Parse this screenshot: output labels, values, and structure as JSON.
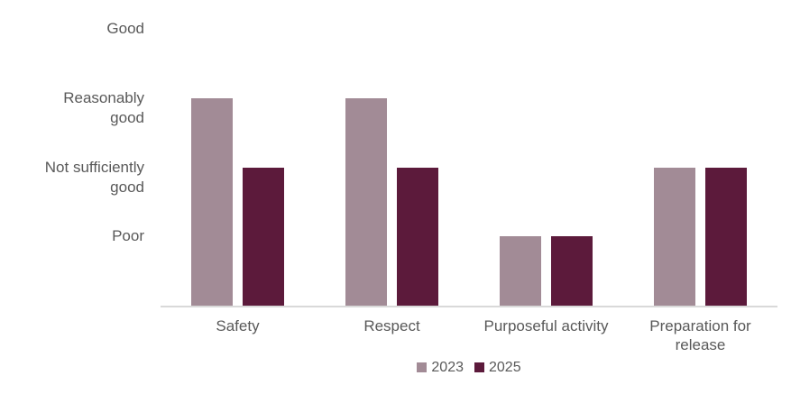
{
  "chart_data": {
    "type": "bar",
    "title": "",
    "xlabel": "",
    "ylabel": "",
    "categories": [
      "Safety",
      "Respect",
      "Purposeful activity",
      "Preparation for release"
    ],
    "series": [
      {
        "name": "2023",
        "color": "#a28b96",
        "values": [
          3,
          3,
          1,
          2
        ]
      },
      {
        "name": "2025",
        "color": "#5c1a3b",
        "values": [
          2,
          2,
          1,
          2
        ]
      }
    ],
    "value_axis": {
      "min": 0,
      "max": 4,
      "tick_values": [
        4,
        3,
        2,
        1
      ],
      "tick_labels": [
        "Good",
        "Reasonably good",
        "Not sufficiently good",
        "Poor"
      ]
    },
    "legend": {
      "position": "bottom",
      "entries": [
        "2023",
        "2025"
      ]
    },
    "grid": false
  },
  "style": {
    "text_color": "#595959",
    "axis_line_color": "#d9d9d9",
    "background": "#ffffff"
  }
}
